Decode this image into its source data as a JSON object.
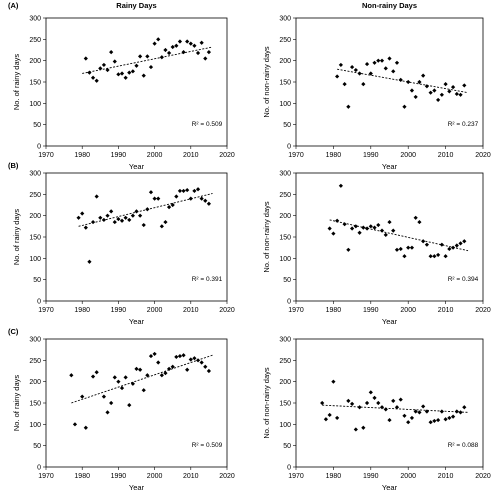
{
  "chart_data": [
    {
      "type": "scatter",
      "panel": "A",
      "title": "Rainy Days",
      "xlabel": "Year",
      "ylabel": "No. of rainy days",
      "xlim": [
        1970,
        2020
      ],
      "ylim": [
        0,
        300
      ],
      "xticks": [
        1970,
        1980,
        1990,
        2000,
        2010,
        2020
      ],
      "yticks": [
        0,
        50,
        100,
        150,
        200,
        250,
        300
      ],
      "r2_label": "R² = 0.509",
      "trend": [
        [
          1980,
          170
        ],
        [
          2016,
          232
        ]
      ],
      "points": [
        [
          1981,
          205
        ],
        [
          1982,
          172
        ],
        [
          1983,
          160
        ],
        [
          1984,
          153
        ],
        [
          1985,
          182
        ],
        [
          1986,
          190
        ],
        [
          1987,
          178
        ],
        [
          1988,
          220
        ],
        [
          1989,
          198
        ],
        [
          1990,
          168
        ],
        [
          1991,
          170
        ],
        [
          1992,
          160
        ],
        [
          1993,
          172
        ],
        [
          1994,
          175
        ],
        [
          1995,
          188
        ],
        [
          1996,
          210
        ],
        [
          1997,
          165
        ],
        [
          1998,
          210
        ],
        [
          1999,
          185
        ],
        [
          2000,
          240
        ],
        [
          2001,
          250
        ],
        [
          2002,
          208
        ],
        [
          2003,
          225
        ],
        [
          2004,
          218
        ],
        [
          2005,
          232
        ],
        [
          2006,
          235
        ],
        [
          2007,
          245
        ],
        [
          2008,
          220
        ],
        [
          2009,
          245
        ],
        [
          2010,
          240
        ],
        [
          2011,
          235
        ],
        [
          2012,
          218
        ],
        [
          2013,
          242
        ],
        [
          2014,
          205
        ],
        [
          2015,
          220
        ]
      ]
    },
    {
      "type": "scatter",
      "panel": "A",
      "title": "Non-rainy Days",
      "xlabel": "Year",
      "ylabel": "No. of non-rainy days",
      "xlim": [
        1970,
        2020
      ],
      "ylim": [
        0,
        300
      ],
      "xticks": [
        1970,
        1980,
        1990,
        2000,
        2010,
        2020
      ],
      "yticks": [
        0,
        50,
        100,
        150,
        200,
        250,
        300
      ],
      "r2_label": "R² = 0.237",
      "trend": [
        [
          1981,
          180
        ],
        [
          2016,
          125
        ]
      ],
      "points": [
        [
          1981,
          163
        ],
        [
          1982,
          190
        ],
        [
          1983,
          145
        ],
        [
          1984,
          92
        ],
        [
          1985,
          185
        ],
        [
          1986,
          178
        ],
        [
          1987,
          170
        ],
        [
          1988,
          145
        ],
        [
          1989,
          192
        ],
        [
          1990,
          170
        ],
        [
          1991,
          195
        ],
        [
          1992,
          200
        ],
        [
          1993,
          200
        ],
        [
          1994,
          182
        ],
        [
          1995,
          205
        ],
        [
          1996,
          175
        ],
        [
          1997,
          195
        ],
        [
          1998,
          155
        ],
        [
          1999,
          92
        ],
        [
          2000,
          150
        ],
        [
          2001,
          130
        ],
        [
          2002,
          115
        ],
        [
          2003,
          150
        ],
        [
          2004,
          165
        ],
        [
          2005,
          140
        ],
        [
          2006,
          125
        ],
        [
          2007,
          130
        ],
        [
          2008,
          108
        ],
        [
          2009,
          120
        ],
        [
          2010,
          145
        ],
        [
          2011,
          128
        ],
        [
          2012,
          138
        ],
        [
          2013,
          122
        ],
        [
          2014,
          120
        ],
        [
          2015,
          142
        ]
      ]
    },
    {
      "type": "scatter",
      "panel": "B",
      "title": "",
      "xlabel": "Year",
      "ylabel": "No. of rainy days",
      "xlim": [
        1970,
        2020
      ],
      "ylim": [
        0,
        300
      ],
      "xticks": [
        1970,
        1980,
        1990,
        2000,
        2010,
        2020
      ],
      "yticks": [
        0,
        50,
        100,
        150,
        200,
        250,
        300
      ],
      "r2_label": "R² = 0.391",
      "trend": [
        [
          1979,
          175
        ],
        [
          2016,
          252
        ]
      ],
      "points": [
        [
          1979,
          195
        ],
        [
          1980,
          205
        ],
        [
          1981,
          172
        ],
        [
          1982,
          92
        ],
        [
          1983,
          185
        ],
        [
          1984,
          245
        ],
        [
          1985,
          195
        ],
        [
          1986,
          190
        ],
        [
          1987,
          200
        ],
        [
          1988,
          210
        ],
        [
          1989,
          185
        ],
        [
          1990,
          192
        ],
        [
          1991,
          188
        ],
        [
          1992,
          195
        ],
        [
          1993,
          190
        ],
        [
          1994,
          200
        ],
        [
          1995,
          210
        ],
        [
          1996,
          200
        ],
        [
          1997,
          178
        ],
        [
          1998,
          215
        ],
        [
          1999,
          255
        ],
        [
          2000,
          240
        ],
        [
          2001,
          240
        ],
        [
          2002,
          175
        ],
        [
          2003,
          185
        ],
        [
          2004,
          220
        ],
        [
          2005,
          225
        ],
        [
          2006,
          245
        ],
        [
          2007,
          258
        ],
        [
          2008,
          258
        ],
        [
          2009,
          260
        ],
        [
          2010,
          240
        ],
        [
          2011,
          258
        ],
        [
          2012,
          262
        ],
        [
          2013,
          240
        ],
        [
          2014,
          235
        ],
        [
          2015,
          228
        ]
      ]
    },
    {
      "type": "scatter",
      "panel": "B",
      "title": "",
      "xlabel": "Year",
      "ylabel": "No. of non-rainy days",
      "xlim": [
        1970,
        2020
      ],
      "ylim": [
        0,
        300
      ],
      "xticks": [
        1970,
        1980,
        1990,
        2000,
        2010,
        2020
      ],
      "yticks": [
        0,
        50,
        100,
        150,
        200,
        250,
        300
      ],
      "r2_label": "R² = 0.394",
      "trend": [
        [
          1979,
          190
        ],
        [
          2016,
          118
        ]
      ],
      "points": [
        [
          1979,
          170
        ],
        [
          1980,
          158
        ],
        [
          1981,
          188
        ],
        [
          1982,
          270
        ],
        [
          1983,
          180
        ],
        [
          1984,
          120
        ],
        [
          1985,
          170
        ],
        [
          1986,
          175
        ],
        [
          1987,
          160
        ],
        [
          1988,
          172
        ],
        [
          1989,
          170
        ],
        [
          1990,
          175
        ],
        [
          1991,
          172
        ],
        [
          1992,
          178
        ],
        [
          1993,
          165
        ],
        [
          1994,
          155
        ],
        [
          1995,
          185
        ],
        [
          1996,
          165
        ],
        [
          1997,
          120
        ],
        [
          1998,
          122
        ],
        [
          1999,
          105
        ],
        [
          2000,
          125
        ],
        [
          2001,
          125
        ],
        [
          2002,
          195
        ],
        [
          2003,
          185
        ],
        [
          2004,
          140
        ],
        [
          2005,
          132
        ],
        [
          2006,
          105
        ],
        [
          2007,
          105
        ],
        [
          2008,
          108
        ],
        [
          2009,
          132
        ],
        [
          2010,
          105
        ],
        [
          2011,
          122
        ],
        [
          2012,
          125
        ],
        [
          2013,
          130
        ],
        [
          2014,
          135
        ],
        [
          2015,
          140
        ]
      ]
    },
    {
      "type": "scatter",
      "panel": "C",
      "title": "",
      "xlabel": "Year",
      "ylabel": "No. of rainy days",
      "xlim": [
        1970,
        2020
      ],
      "ylim": [
        0,
        300
      ],
      "xticks": [
        1970,
        1980,
        1990,
        2000,
        2010,
        2020
      ],
      "yticks": [
        0,
        50,
        100,
        150,
        200,
        250,
        300
      ],
      "r2_label": "R² = 0.509",
      "trend": [
        [
          1977,
          150
        ],
        [
          2016,
          262
        ]
      ],
      "points": [
        [
          1977,
          215
        ],
        [
          1978,
          100
        ],
        [
          1980,
          165
        ],
        [
          1981,
          92
        ],
        [
          1983,
          212
        ],
        [
          1984,
          222
        ],
        [
          1986,
          165
        ],
        [
          1987,
          128
        ],
        [
          1988,
          150
        ],
        [
          1989,
          210
        ],
        [
          1990,
          200
        ],
        [
          1991,
          185
        ],
        [
          1992,
          210
        ],
        [
          1993,
          145
        ],
        [
          1994,
          195
        ],
        [
          1995,
          230
        ],
        [
          1996,
          228
        ],
        [
          1997,
          180
        ],
        [
          1998,
          215
        ],
        [
          1999,
          260
        ],
        [
          2000,
          265
        ],
        [
          2001,
          245
        ],
        [
          2002,
          215
        ],
        [
          2003,
          220
        ],
        [
          2004,
          230
        ],
        [
          2005,
          235
        ],
        [
          2006,
          258
        ],
        [
          2007,
          260
        ],
        [
          2008,
          262
        ],
        [
          2009,
          228
        ],
        [
          2010,
          252
        ],
        [
          2011,
          255
        ],
        [
          2012,
          250
        ],
        [
          2013,
          245
        ],
        [
          2014,
          235
        ],
        [
          2015,
          225
        ]
      ]
    },
    {
      "type": "scatter",
      "panel": "C",
      "title": "",
      "xlabel": "Year",
      "ylabel": "No. of non-rainy days",
      "xlim": [
        1970,
        2020
      ],
      "ylim": [
        0,
        300
      ],
      "xticks": [
        1970,
        1980,
        1990,
        2000,
        2010,
        2020
      ],
      "yticks": [
        0,
        50,
        100,
        150,
        200,
        250,
        300
      ],
      "r2_label": "R² = 0.088",
      "trend": [
        [
          1977,
          145
        ],
        [
          2016,
          128
        ]
      ],
      "points": [
        [
          1977,
          150
        ],
        [
          1978,
          112
        ],
        [
          1979,
          122
        ],
        [
          1980,
          200
        ],
        [
          1981,
          115
        ],
        [
          1984,
          155
        ],
        [
          1985,
          148
        ],
        [
          1986,
          88
        ],
        [
          1987,
          140
        ],
        [
          1988,
          92
        ],
        [
          1989,
          150
        ],
        [
          1990,
          175
        ],
        [
          1991,
          162
        ],
        [
          1992,
          150
        ],
        [
          1993,
          140
        ],
        [
          1994,
          135
        ],
        [
          1995,
          110
        ],
        [
          1996,
          155
        ],
        [
          1997,
          140
        ],
        [
          1998,
          158
        ],
        [
          1999,
          120
        ],
        [
          2000,
          105
        ],
        [
          2001,
          115
        ],
        [
          2002,
          130
        ],
        [
          2003,
          128
        ],
        [
          2004,
          142
        ],
        [
          2005,
          130
        ],
        [
          2006,
          105
        ],
        [
          2007,
          108
        ],
        [
          2008,
          110
        ],
        [
          2009,
          130
        ],
        [
          2010,
          112
        ],
        [
          2011,
          115
        ],
        [
          2012,
          118
        ],
        [
          2013,
          130
        ],
        [
          2014,
          128
        ],
        [
          2015,
          140
        ]
      ]
    }
  ]
}
